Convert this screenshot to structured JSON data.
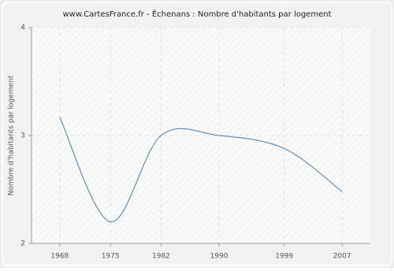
{
  "chart_data": {
    "type": "line",
    "title": "www.CartesFrance.fr - Échenans : Nombre d'habitants par logement",
    "y_label": "Nombre d'habitants par logement",
    "x": [
      1968,
      1975,
      1982,
      1990,
      1999,
      2007
    ],
    "values": [
      3.17,
      2.2,
      3.0,
      3.0,
      2.88,
      2.48
    ],
    "color": "#4a78a8",
    "xlim": [
      1964.1,
      2010.9
    ],
    "xticks": [
      1968,
      1975,
      1982,
      1990,
      1999,
      2007
    ],
    "ylim": [
      2,
      4
    ],
    "yticks": [
      2,
      3,
      4
    ],
    "grid": true,
    "smooth": true
  }
}
